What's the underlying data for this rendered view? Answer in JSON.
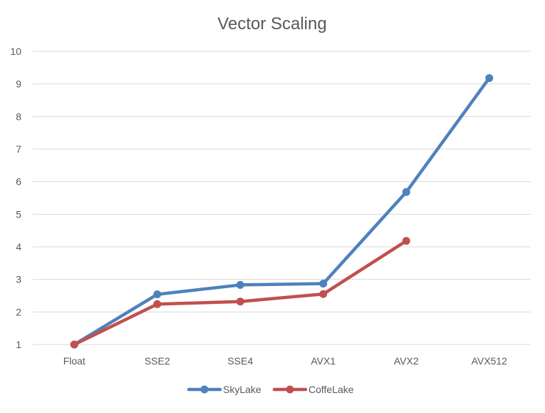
{
  "chart_data": {
    "type": "line",
    "title": "Vector Scaling",
    "xlabel": "",
    "ylabel": "",
    "categories": [
      "Float",
      "SSE2",
      "SSE4",
      "AVX1",
      "AVX2",
      "AVX512"
    ],
    "ylim": [
      1,
      10
    ],
    "yticks": [
      1,
      2,
      3,
      4,
      5,
      6,
      7,
      8,
      9,
      10
    ],
    "grid": true,
    "legend_position": "bottom",
    "series": [
      {
        "name": "SkyLake",
        "color": "#4f81bd",
        "values": [
          1.0,
          2.54,
          2.83,
          2.87,
          5.68,
          9.18
        ]
      },
      {
        "name": "CoffeLake",
        "color": "#c0504d",
        "values": [
          1.0,
          2.24,
          2.32,
          2.55,
          4.18,
          null
        ]
      }
    ]
  }
}
